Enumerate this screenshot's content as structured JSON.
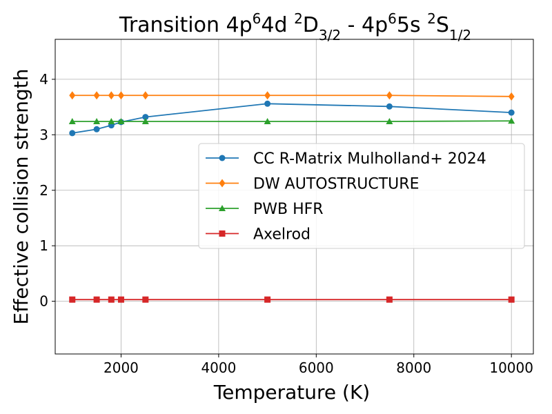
{
  "chart_data": {
    "type": "line",
    "title": {
      "prefix": "Transition 4p",
      "sup1": "6",
      "mid1": "4d ",
      "sup2": "2",
      "mid2": "D",
      "sub1": "3/2",
      "mid3": " - 4p",
      "sup3": "6",
      "mid4": "5s ",
      "sup4": "2",
      "mid5": "S",
      "sub2": "1/2"
    },
    "xlabel": "Temperature (K)",
    "ylabel": "Effective collision strength",
    "xlim": [
      650,
      10450
    ],
    "ylim": [
      -0.95,
      4.72
    ],
    "xticks": [
      2000,
      4000,
      6000,
      8000,
      10000
    ],
    "xtick_labels": [
      "2000",
      "4000",
      "6000",
      "8000",
      "10000"
    ],
    "yticks": [
      0,
      1,
      2,
      3,
      4
    ],
    "ytick_labels": [
      "0",
      "1",
      "2",
      "3",
      "4"
    ],
    "grid": true,
    "legend_position": "center-right",
    "x": [
      1000,
      1500,
      1800,
      2000,
      2500,
      5000,
      7500,
      10000
    ],
    "series": [
      {
        "name": "CC R-Matrix Mulholland+ 2024",
        "color": "#1f77b4",
        "marker": "circle",
        "values": [
          3.03,
          3.1,
          3.17,
          3.23,
          3.32,
          3.56,
          3.51,
          3.4
        ]
      },
      {
        "name": "DW AUTOSTRUCTURE",
        "color": "#ff7f0e",
        "marker": "diamond",
        "values": [
          3.71,
          3.71,
          3.71,
          3.71,
          3.71,
          3.71,
          3.71,
          3.69
        ]
      },
      {
        "name": "PWB HFR",
        "color": "#2ca02c",
        "marker": "triangle",
        "values": [
          3.24,
          3.24,
          3.24,
          3.24,
          3.24,
          3.24,
          3.24,
          3.25
        ]
      },
      {
        "name": "Axelrod",
        "color": "#d62728",
        "marker": "square",
        "values": [
          0.03,
          0.03,
          0.03,
          0.03,
          0.03,
          0.03,
          0.03,
          0.03
        ]
      }
    ]
  }
}
